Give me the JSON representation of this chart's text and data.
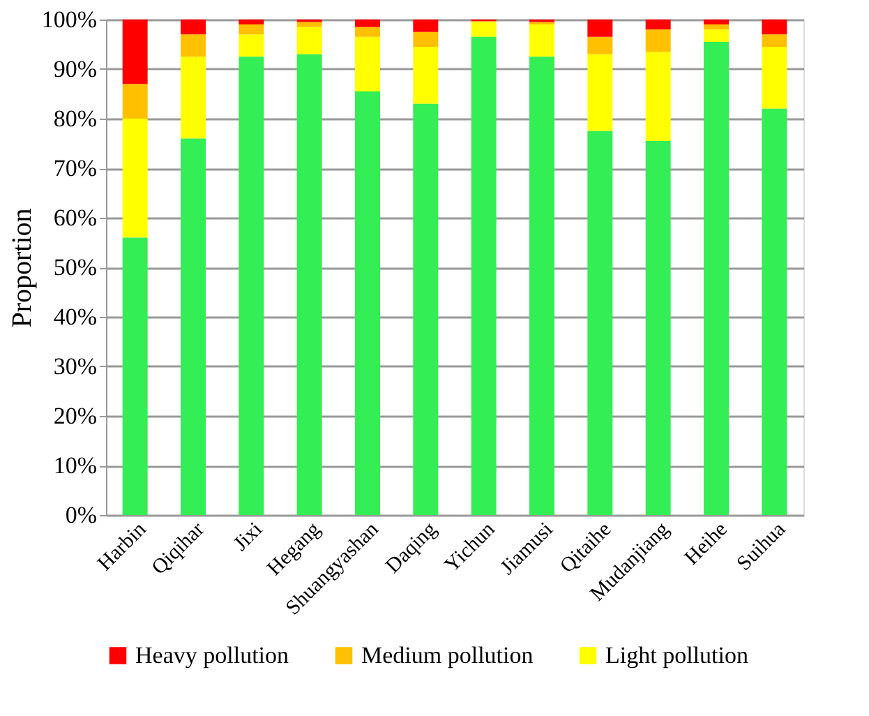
{
  "chart_data": {
    "type": "bar",
    "stacked": true,
    "ylabel": "Proportion",
    "categories": [
      "Harbin",
      "Qiqihar",
      "Jixi",
      "Hegang",
      "Shuangyashan",
      "Daqing",
      "Yichun",
      "Jiamusi",
      "Qitaihe",
      "Mudanjiang",
      "Heihe",
      "Suihua"
    ],
    "series": [
      {
        "color": "#33ee55",
        "values": [
          56,
          76,
          92.5,
          93,
          85.5,
          83,
          96.5,
          92.5,
          77.5,
          75.5,
          95.5,
          82
        ]
      },
      {
        "name": "Light pollution",
        "color": "#ffff00",
        "values": [
          24,
          16.5,
          4.5,
          5.5,
          11,
          11.5,
          3,
          6.5,
          15.5,
          18,
          2.5,
          12.5
        ]
      },
      {
        "name": "Medium pollution",
        "color": "#ffc000",
        "values": [
          7,
          4.5,
          2,
          1,
          2,
          3,
          0.2,
          0.5,
          3.5,
          4.5,
          1,
          2.5
        ]
      },
      {
        "name": "Heavy pollution",
        "color": "#ff0000",
        "values": [
          13,
          3,
          1,
          0.5,
          1.5,
          2.5,
          0.3,
          0.5,
          3.5,
          2,
          1,
          3
        ]
      }
    ],
    "ylim": [
      0,
      100
    ],
    "yticks": [
      {
        "value": 0,
        "label": "0%"
      },
      {
        "value": 10,
        "label": "10%"
      },
      {
        "value": 20,
        "label": "20%"
      },
      {
        "value": 30,
        "label": "30%"
      },
      {
        "value": 40,
        "label": "40%"
      },
      {
        "value": 50,
        "label": "50%"
      },
      {
        "value": 60,
        "label": "60%"
      },
      {
        "value": 70,
        "label": "70%"
      },
      {
        "value": 80,
        "label": "80%"
      },
      {
        "value": 90,
        "label": "90%"
      },
      {
        "value": 100,
        "label": "100%"
      }
    ],
    "grid": "y",
    "legend": "bottom"
  }
}
